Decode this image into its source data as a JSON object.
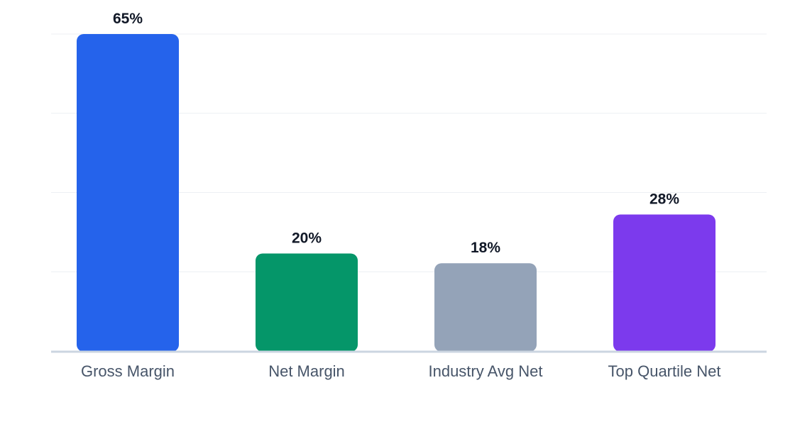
{
  "chart_data": {
    "type": "bar",
    "categories": [
      "Gross Margin",
      "Net Margin",
      "Industry Avg Net",
      "Top Quartile Net"
    ],
    "values": [
      65,
      20,
      18,
      28
    ],
    "value_labels": [
      "65%",
      "20%",
      "18%",
      "28%"
    ],
    "colors": [
      "#2563eb",
      "#059669",
      "#94a3b8",
      "#7c3aed"
    ],
    "ylim": [
      0,
      65
    ],
    "grid": true,
    "title": "",
    "xlabel": "",
    "ylabel": ""
  },
  "style": {
    "grid_color": "#eceff3",
    "axis_color": "#cbd5e1",
    "label_color": "#111827",
    "category_color": "#475569"
  }
}
